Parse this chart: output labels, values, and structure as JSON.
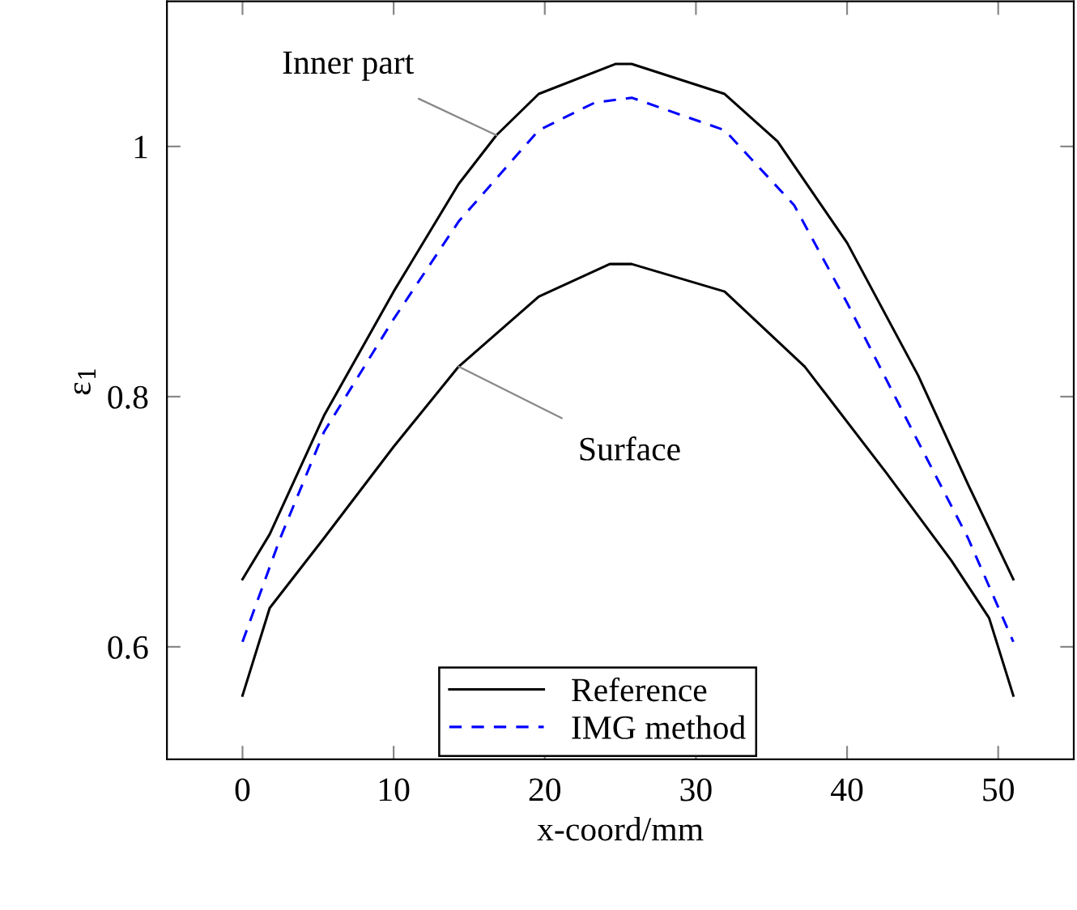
{
  "chart_data": {
    "type": "line",
    "xlabel": "x-coord/mm",
    "ylabel": "ε$_{1}$",
    "xlim": [
      -5,
      55
    ],
    "ylim": [
      0.51,
      1.116
    ],
    "xticks": [
      0,
      10,
      20,
      30,
      40,
      50
    ],
    "yticks": [
      0.6,
      0.8,
      1
    ],
    "grid": false,
    "legend": "bottom",
    "marker": "none",
    "series": [
      {
        "name": "Reference",
        "color": "#000000",
        "line_style": "solid",
        "x": [
          0,
          1.8,
          5.4,
          10,
          14.3,
          16.8,
          19.6,
          24.7,
          25.75,
          31.9,
          35.4,
          40,
          44.7,
          48,
          51
        ],
        "values": [
          0.654,
          0.69,
          0.785,
          0.884,
          0.97,
          1.009,
          1.042,
          1.066,
          1.066,
          1.042,
          1.004,
          0.923,
          0.817,
          0.73,
          0.654
        ]
      },
      {
        "color": "#000000",
        "line_style": "solid",
        "x": [
          0,
          1.8,
          5.4,
          10,
          14.3,
          19.6,
          24.3,
          25.75,
          31.9,
          37.2,
          42.6,
          46.9,
          49.4,
          51
        ],
        "values": [
          0.561,
          0.631,
          0.687,
          0.76,
          0.824,
          0.88,
          0.906,
          0.906,
          0.884,
          0.824,
          0.739,
          0.669,
          0.623,
          0.561
        ]
      },
      {
        "name": "IMG method",
        "color": "#0000ff",
        "line_style": "dashed",
        "x": [
          0,
          2.5,
          5.4,
          10,
          14.3,
          19.6,
          23.3,
          25.75,
          31.9,
          36.5,
          40,
          44.7,
          48,
          51
        ],
        "values": [
          0.604,
          0.687,
          0.772,
          0.862,
          0.94,
          1.013,
          1.035,
          1.039,
          1.013,
          0.953,
          0.875,
          0.764,
          0.687,
          0.604
        ]
      }
    ],
    "annotations": [
      {
        "text": "Inner part",
        "x": 16.8,
        "y": 1.009
      },
      {
        "text": "Surface",
        "x": 14.3,
        "y": 0.824
      }
    ]
  }
}
